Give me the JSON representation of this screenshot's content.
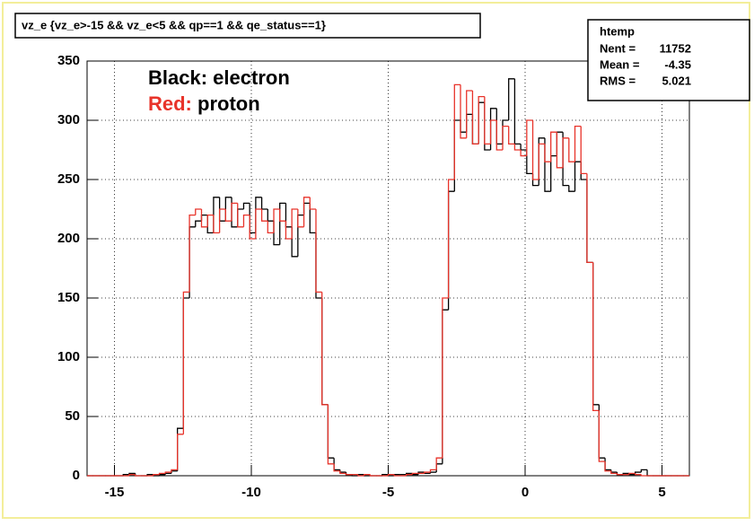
{
  "chart_data": {
    "type": "step-histogram",
    "title": "vz_e {vz_e>-15 && vz_e<5 && qp==1 && qe_status==1}",
    "bins": [
      -16,
      -15.78,
      -15.56,
      -15.34,
      -15.12,
      -14.9,
      -14.68,
      -14.46,
      -14.24,
      -14.02,
      -13.8,
      -13.58,
      -13.36,
      -13.14,
      -12.92,
      -12.7,
      -12.48,
      -12.26,
      -12.04,
      -11.82,
      -11.6,
      -11.38,
      -11.16,
      -10.94,
      -10.72,
      -10.5,
      -10.28,
      -10.06,
      -9.84,
      -9.62,
      -9.4,
      -9.18,
      -8.96,
      -8.74,
      -8.52,
      -8.3,
      -8.08,
      -7.86,
      -7.64,
      -7.42,
      -7.2,
      -6.98,
      -6.76,
      -6.54,
      -6.32,
      -6.1,
      -5.88,
      -5.66,
      -5.44,
      -5.22,
      -5,
      -4.78,
      -4.56,
      -4.34,
      -4.12,
      -3.9,
      -3.68,
      -3.46,
      -3.24,
      -3.02,
      -2.8,
      -2.58,
      -2.36,
      -2.14,
      -1.92,
      -1.7,
      -1.48,
      -1.26,
      -1.04,
      -0.82,
      -0.6,
      -0.38,
      -0.16,
      0.06,
      0.28,
      0.5,
      0.72,
      0.94,
      1.16,
      1.38,
      1.6,
      1.82,
      2.04,
      2.26,
      2.48,
      2.7,
      2.92,
      3.14,
      3.36,
      3.58,
      3.8,
      4.02,
      4.24,
      4.46,
      4.68,
      4.9,
      5.12,
      5.34,
      5.56,
      5.78,
      6
    ],
    "series": [
      {
        "label": "Black:",
        "name": "electron",
        "color": "#000000",
        "values": [
          0,
          0,
          0,
          0,
          0,
          0,
          1,
          2,
          0,
          0,
          1,
          0,
          1,
          2,
          4,
          40,
          150,
          210,
          215,
          220,
          205,
          235,
          215,
          235,
          210,
          225,
          230,
          205,
          235,
          225,
          215,
          195,
          230,
          210,
          185,
          220,
          230,
          205,
          150,
          60,
          15,
          5,
          3,
          1,
          0,
          1,
          0,
          0,
          0,
          1,
          0,
          1,
          1,
          2,
          1,
          3,
          2,
          3,
          10,
          140,
          240,
          300,
          290,
          305,
          280,
          315,
          275,
          310,
          280,
          300,
          335,
          280,
          275,
          255,
          245,
          285,
          240,
          270,
          290,
          245,
          240,
          265,
          250,
          180,
          60,
          15,
          5,
          3,
          1,
          2,
          1,
          3,
          5,
          0,
          0,
          0,
          0,
          0,
          0,
          0
        ]
      },
      {
        "label": "Red:",
        "name": "proton",
        "color": "#e8332a",
        "values": [
          0,
          0,
          0,
          0,
          0,
          0,
          0,
          1,
          0,
          0,
          0,
          1,
          2,
          3,
          5,
          35,
          155,
          220,
          225,
          210,
          220,
          205,
          225,
          215,
          230,
          210,
          220,
          200,
          225,
          215,
          205,
          225,
          215,
          200,
          225,
          210,
          235,
          225,
          155,
          60,
          10,
          4,
          2,
          1,
          1,
          0,
          1,
          0,
          0,
          0,
          1,
          0,
          0,
          1,
          2,
          2,
          3,
          5,
          15,
          150,
          250,
          330,
          285,
          325,
          280,
          320,
          280,
          300,
          275,
          295,
          280,
          275,
          270,
          300,
          250,
          280,
          265,
          290,
          260,
          285,
          265,
          295,
          255,
          180,
          55,
          12,
          4,
          2,
          1,
          1,
          2,
          1,
          0,
          0,
          0,
          0,
          0,
          0,
          0,
          0
        ]
      }
    ],
    "xlim": [
      -16,
      6
    ],
    "xticks": [
      -15,
      -10,
      -5,
      0,
      5
    ],
    "ylim": [
      0,
      350
    ],
    "yticks": [
      0,
      50,
      100,
      150,
      200,
      250,
      300,
      350
    ],
    "grid": true,
    "stats": {
      "title": "htemp",
      "rows": [
        {
          "label": "Nent =",
          "value": 11752
        },
        {
          "label": "Mean  =",
          "value": -4.35
        },
        {
          "label": "RMS   =",
          "value": 5.021
        }
      ]
    }
  }
}
